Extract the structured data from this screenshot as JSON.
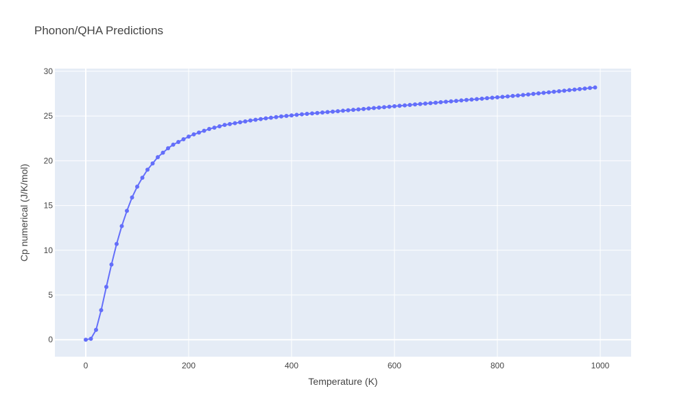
{
  "chart_data": {
    "type": "line",
    "title": "Phonon/QHA Predictions",
    "xlabel": "Temperature (K)",
    "ylabel": "Cp numerical (J/K/mol)",
    "xlim": [
      -60,
      1060
    ],
    "ylim": [
      -1.9,
      30.3
    ],
    "x_ticks": [
      0,
      200,
      400,
      600,
      800,
      1000
    ],
    "y_ticks": [
      0,
      5,
      10,
      15,
      20,
      25,
      30
    ],
    "grid": true,
    "legend": "none",
    "series": [
      {
        "color": "#636efa",
        "x": [
          0,
          10,
          20,
          30,
          40,
          50,
          60,
          70,
          80,
          90,
          100,
          110,
          120,
          130,
          140,
          150,
          160,
          170,
          180,
          190,
          200,
          210,
          220,
          230,
          240,
          250,
          260,
          270,
          280,
          290,
          300,
          310,
          320,
          330,
          340,
          350,
          360,
          370,
          380,
          390,
          400,
          410,
          420,
          430,
          440,
          450,
          460,
          470,
          480,
          490,
          500,
          510,
          520,
          530,
          540,
          550,
          560,
          570,
          580,
          590,
          600,
          610,
          620,
          630,
          640,
          650,
          660,
          670,
          680,
          690,
          700,
          710,
          720,
          730,
          740,
          750,
          760,
          770,
          780,
          790,
          800,
          810,
          820,
          830,
          840,
          850,
          860,
          870,
          880,
          890,
          900,
          910,
          920,
          930,
          940,
          950,
          960,
          970,
          980,
          990
        ],
        "y": [
          0,
          0.1,
          1.1,
          3.3,
          5.9,
          8.4,
          10.7,
          12.7,
          14.4,
          15.9,
          17.1,
          18.1,
          19.0,
          19.7,
          20.4,
          20.9,
          21.4,
          21.8,
          22.1,
          22.4,
          22.7,
          22.95,
          23.15,
          23.35,
          23.55,
          23.7,
          23.85,
          24.0,
          24.1,
          24.2,
          24.3,
          24.4,
          24.5,
          24.58,
          24.66,
          24.74,
          24.81,
          24.88,
          24.95,
          25.01,
          25.07,
          25.13,
          25.19,
          25.24,
          25.29,
          25.34,
          25.39,
          25.44,
          25.49,
          25.54,
          25.59,
          25.64,
          25.69,
          25.74,
          25.79,
          25.84,
          25.89,
          25.94,
          25.99,
          26.04,
          26.09,
          26.14,
          26.19,
          26.24,
          26.29,
          26.34,
          26.39,
          26.44,
          26.49,
          26.54,
          26.59,
          26.64,
          26.69,
          26.74,
          26.79,
          26.84,
          26.89,
          26.94,
          26.99,
          27.04,
          27.09,
          27.14,
          27.19,
          27.24,
          27.29,
          27.35,
          27.41,
          27.47,
          27.53,
          27.59,
          27.65,
          27.71,
          27.77,
          27.83,
          27.89,
          27.95,
          28.01,
          28.07,
          28.13,
          28.19
        ]
      }
    ]
  }
}
